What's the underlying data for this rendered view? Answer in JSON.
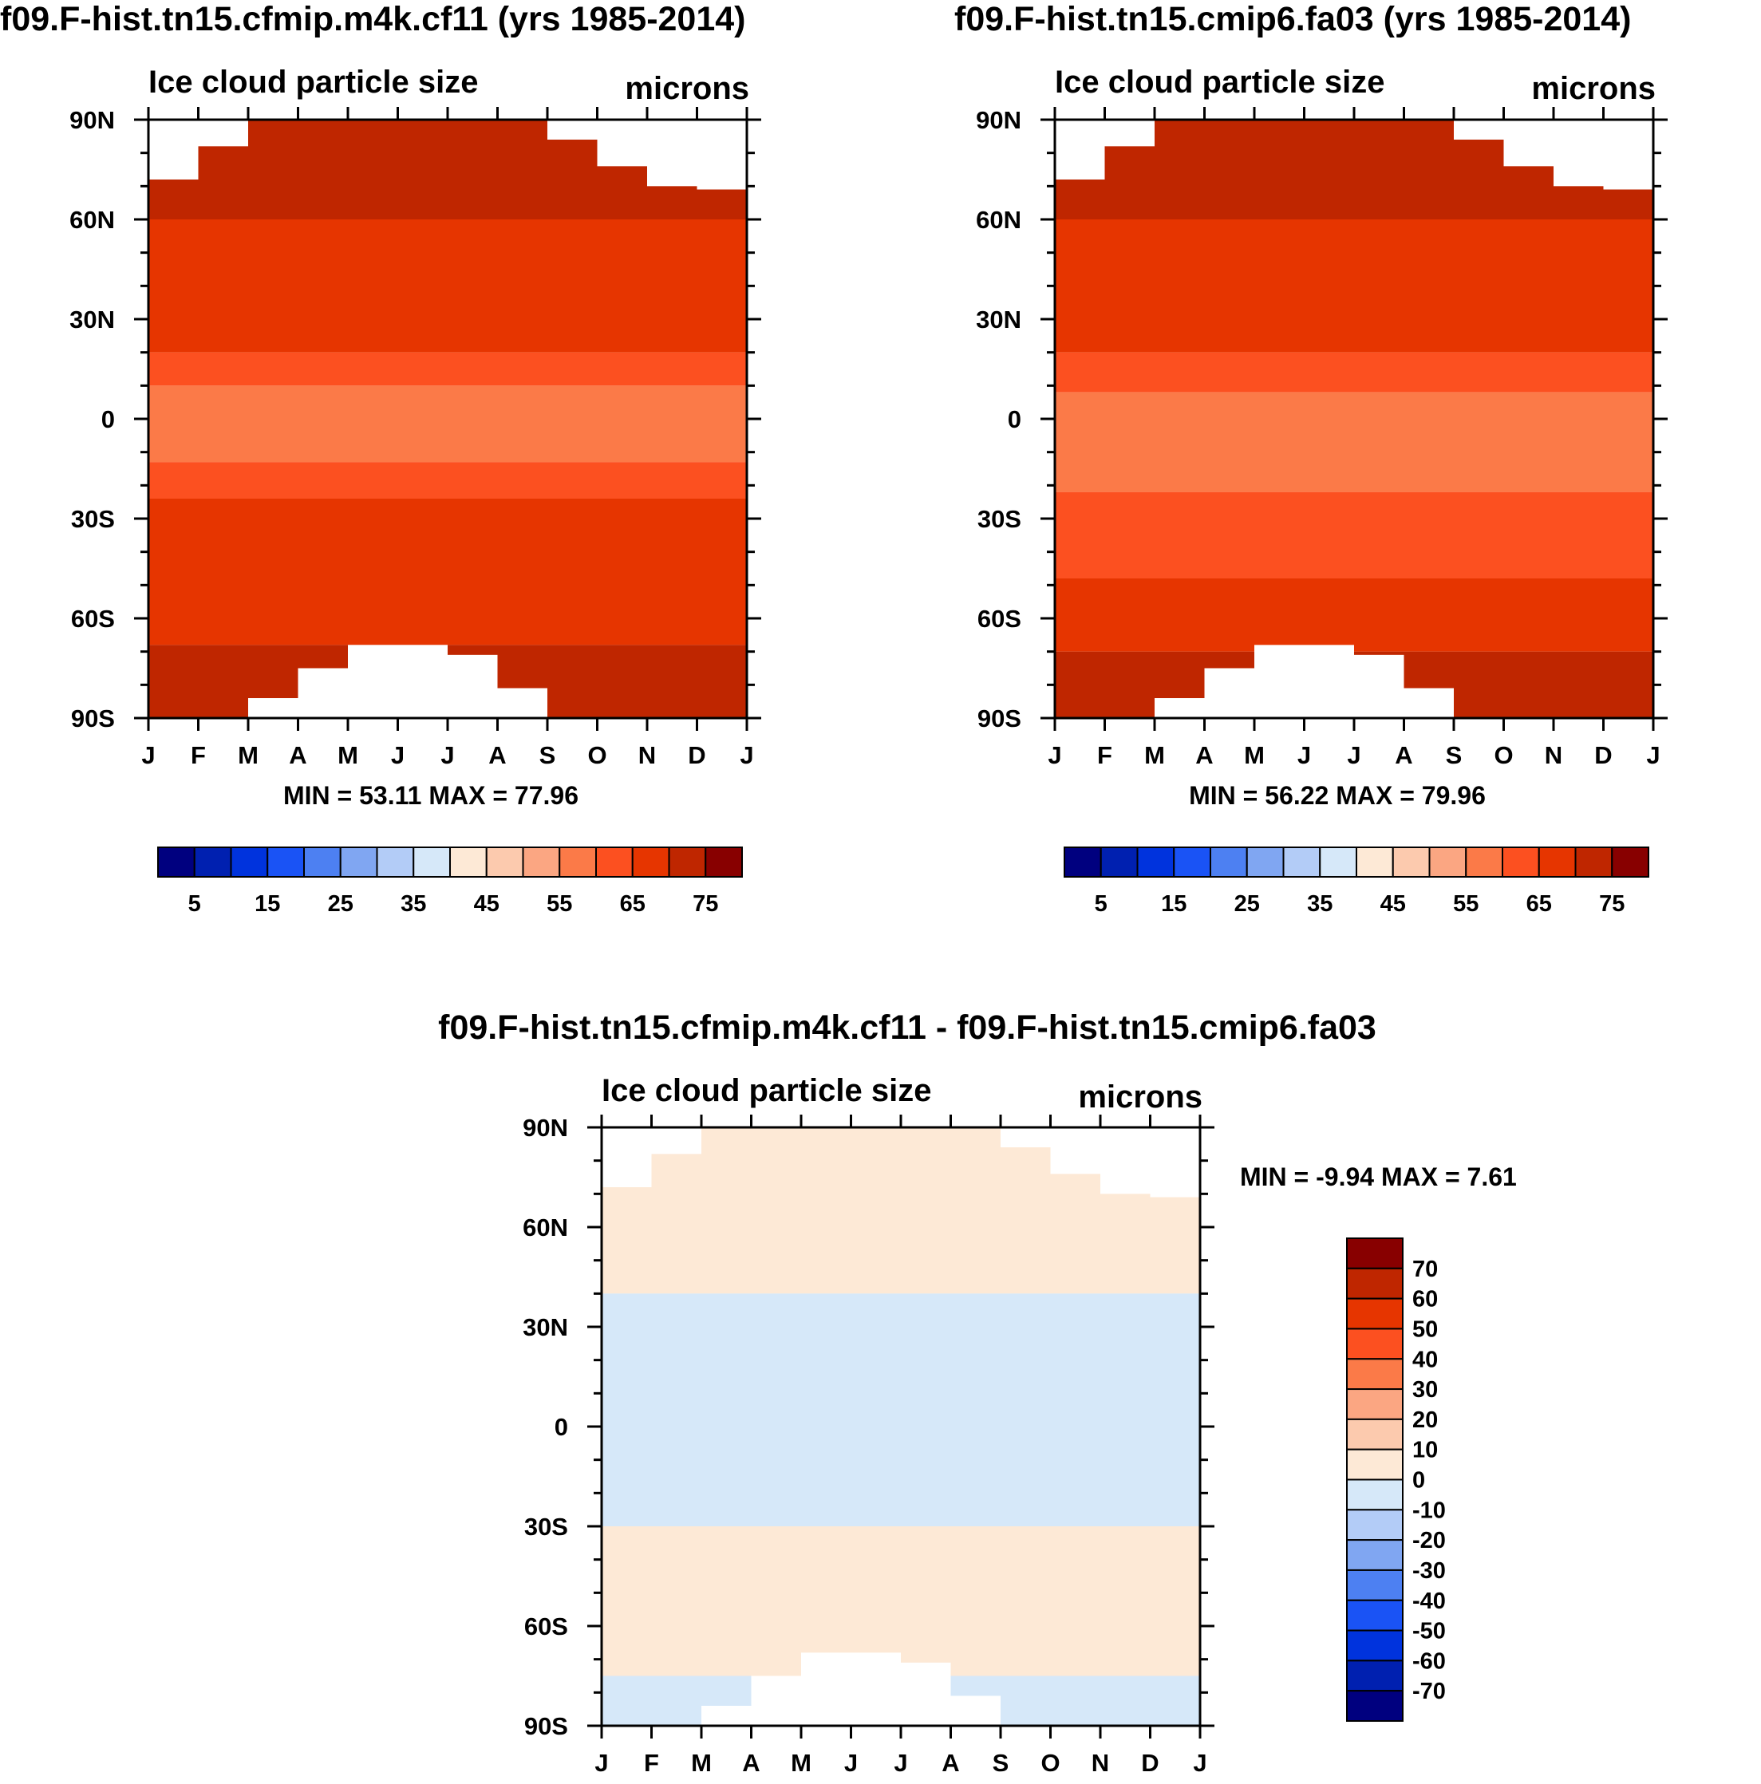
{
  "chart_data": [
    {
      "type": "contour",
      "title": "f09.F-hist.tn15.cfmip.m4k.cf11 (yrs 1985-2014)",
      "left_string": "Ice cloud particle size",
      "right_string": "microns",
      "x_tick_labels": [
        "J",
        "F",
        "M",
        "A",
        "M",
        "J",
        "J",
        "A",
        "S",
        "O",
        "N",
        "D",
        "J"
      ],
      "y_tick_labels": [
        "90N",
        "60N",
        "30N",
        "0",
        "30S",
        "60S",
        "90S"
      ],
      "ylim": [
        -90,
        90
      ],
      "min_label": "MIN =  53.11 MAX =  77.96",
      "min": 53.11,
      "max": 77.96,
      "colorbar_orientation": "horizontal",
      "colorbar_labels": [
        "5",
        "15",
        "25",
        "35",
        "45",
        "55",
        "65",
        "75"
      ],
      "colorbar_levels": [
        0,
        5,
        10,
        15,
        20,
        25,
        30,
        35,
        40,
        45,
        50,
        55,
        60,
        65,
        70,
        75,
        80
      ],
      "bands_lat_north_to_south": [
        {
          "lat_top": 90,
          "lat_bottom": 72,
          "value": 72
        },
        {
          "lat_top": 72,
          "lat_bottom": 60,
          "value": 72
        },
        {
          "lat_top": 60,
          "lat_bottom": 20,
          "value": 67
        },
        {
          "lat_top": 20,
          "lat_bottom": 10,
          "value": 62
        },
        {
          "lat_top": 10,
          "lat_bottom": -13,
          "value": 57
        },
        {
          "lat_top": -13,
          "lat_bottom": -24,
          "value": 62
        },
        {
          "lat_top": -24,
          "lat_bottom": -68,
          "value": 67
        },
        {
          "lat_top": -68,
          "lat_bottom": -90,
          "value": 72
        }
      ]
    },
    {
      "type": "contour",
      "title": "f09.F-hist.tn15.cmip6.fa03 (yrs 1985-2014)",
      "left_string": "Ice cloud particle size",
      "right_string": "microns",
      "x_tick_labels": [
        "J",
        "F",
        "M",
        "A",
        "M",
        "J",
        "J",
        "A",
        "S",
        "O",
        "N",
        "D",
        "J"
      ],
      "y_tick_labels": [
        "90N",
        "60N",
        "30N",
        "0",
        "30S",
        "60S",
        "90S"
      ],
      "ylim": [
        -90,
        90
      ],
      "min_label": "MIN =  56.22 MAX =  79.96",
      "min": 56.22,
      "max": 79.96,
      "colorbar_orientation": "horizontal",
      "colorbar_labels": [
        "5",
        "15",
        "25",
        "35",
        "45",
        "55",
        "65",
        "75"
      ],
      "colorbar_levels": [
        0,
        5,
        10,
        15,
        20,
        25,
        30,
        35,
        40,
        45,
        50,
        55,
        60,
        65,
        70,
        75,
        80
      ],
      "bands_lat_north_to_south": [
        {
          "lat_top": 90,
          "lat_bottom": 60,
          "value": 72
        },
        {
          "lat_top": 60,
          "lat_bottom": 20,
          "value": 67
        },
        {
          "lat_top": 20,
          "lat_bottom": 8,
          "value": 62
        },
        {
          "lat_top": 8,
          "lat_bottom": -22,
          "value": 57
        },
        {
          "lat_top": -22,
          "lat_bottom": -48,
          "value": 62
        },
        {
          "lat_top": -48,
          "lat_bottom": -70,
          "value": 67
        },
        {
          "lat_top": -70,
          "lat_bottom": -90,
          "value": 72
        }
      ]
    },
    {
      "type": "contour",
      "title": "f09.F-hist.tn15.cfmip.m4k.cf11 - f09.F-hist.tn15.cmip6.fa03",
      "left_string": "Ice cloud particle size",
      "right_string": "microns",
      "x_tick_labels": [
        "J",
        "F",
        "M",
        "A",
        "M",
        "J",
        "J",
        "A",
        "S",
        "O",
        "N",
        "D",
        "J"
      ],
      "y_tick_labels": [
        "90N",
        "60N",
        "30N",
        "0",
        "30S",
        "60S",
        "90S"
      ],
      "ylim": [
        -90,
        90
      ],
      "min_label": "MIN =  -9.94 MAX =   7.61",
      "min": -9.94,
      "max": 7.61,
      "colorbar_orientation": "vertical",
      "colorbar_labels": [
        "70",
        "60",
        "50",
        "40",
        "30",
        "20",
        "10",
        "0",
        "-10",
        "-20",
        "-30",
        "-40",
        "-50",
        "-60",
        "-70"
      ],
      "colorbar_levels": [
        -80,
        -70,
        -60,
        -50,
        -40,
        -30,
        -20,
        -10,
        0,
        10,
        20,
        30,
        40,
        50,
        60,
        70,
        80
      ],
      "bands_lat_north_to_south": [
        {
          "lat_top": 90,
          "lat_bottom": 40,
          "value": 5
        },
        {
          "lat_top": 40,
          "lat_bottom": -30,
          "value": -5
        },
        {
          "lat_top": -30,
          "lat_bottom": -75,
          "value": 5
        },
        {
          "lat_top": -75,
          "lat_bottom": -90,
          "value": -5
        }
      ]
    }
  ],
  "palette": {
    "blue_red": [
      "#00007f",
      "#0020b0",
      "#0033dd",
      "#1a53f5",
      "#4d80f2",
      "#80a6f2",
      "#b3ccf7",
      "#d6e8f9",
      "#fde9d6",
      "#fccaae",
      "#fba682",
      "#fb7a48",
      "#fc5020",
      "#e63500",
      "#bf2600",
      "#880000"
    ],
    "missing": "#ffffff"
  }
}
